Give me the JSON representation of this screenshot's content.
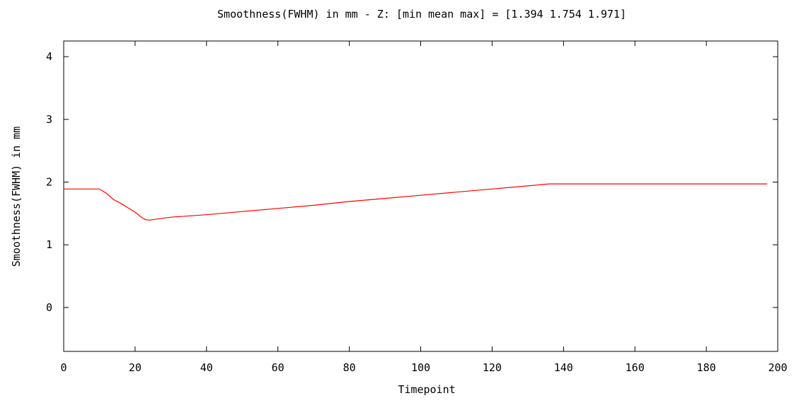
{
  "chart_data": {
    "type": "line",
    "title": "Smoothness(FWHM) in mm - Z: [min mean max] = [1.394 1.754 1.971]",
    "xlabel": "Timepoint",
    "ylabel": "Smoothness(FWHM) in mm",
    "xlim": [
      0,
      200
    ],
    "ylim": [
      -0.7,
      4.25
    ],
    "xticks": [
      0,
      20,
      40,
      60,
      80,
      100,
      120,
      140,
      160,
      180,
      200
    ],
    "yticks": [
      0,
      1,
      2,
      3,
      4
    ],
    "grid": false,
    "legend": "none",
    "series": [
      {
        "color": "#ff0000",
        "points": [
          [
            0,
            1.89
          ],
          [
            10,
            1.89
          ],
          [
            12,
            1.82
          ],
          [
            14,
            1.72
          ],
          [
            16,
            1.66
          ],
          [
            18,
            1.59
          ],
          [
            20,
            1.52
          ],
          [
            22,
            1.43
          ],
          [
            23,
            1.4
          ],
          [
            24,
            1.394
          ],
          [
            30,
            1.44
          ],
          [
            40,
            1.48
          ],
          [
            50,
            1.53
          ],
          [
            60,
            1.58
          ],
          [
            70,
            1.63
          ],
          [
            80,
            1.69
          ],
          [
            90,
            1.74
          ],
          [
            100,
            1.79
          ],
          [
            110,
            1.84
          ],
          [
            120,
            1.89
          ],
          [
            130,
            1.94
          ],
          [
            136,
            1.971
          ],
          [
            150,
            1.971
          ],
          [
            170,
            1.971
          ],
          [
            197,
            1.971
          ]
        ]
      }
    ]
  }
}
